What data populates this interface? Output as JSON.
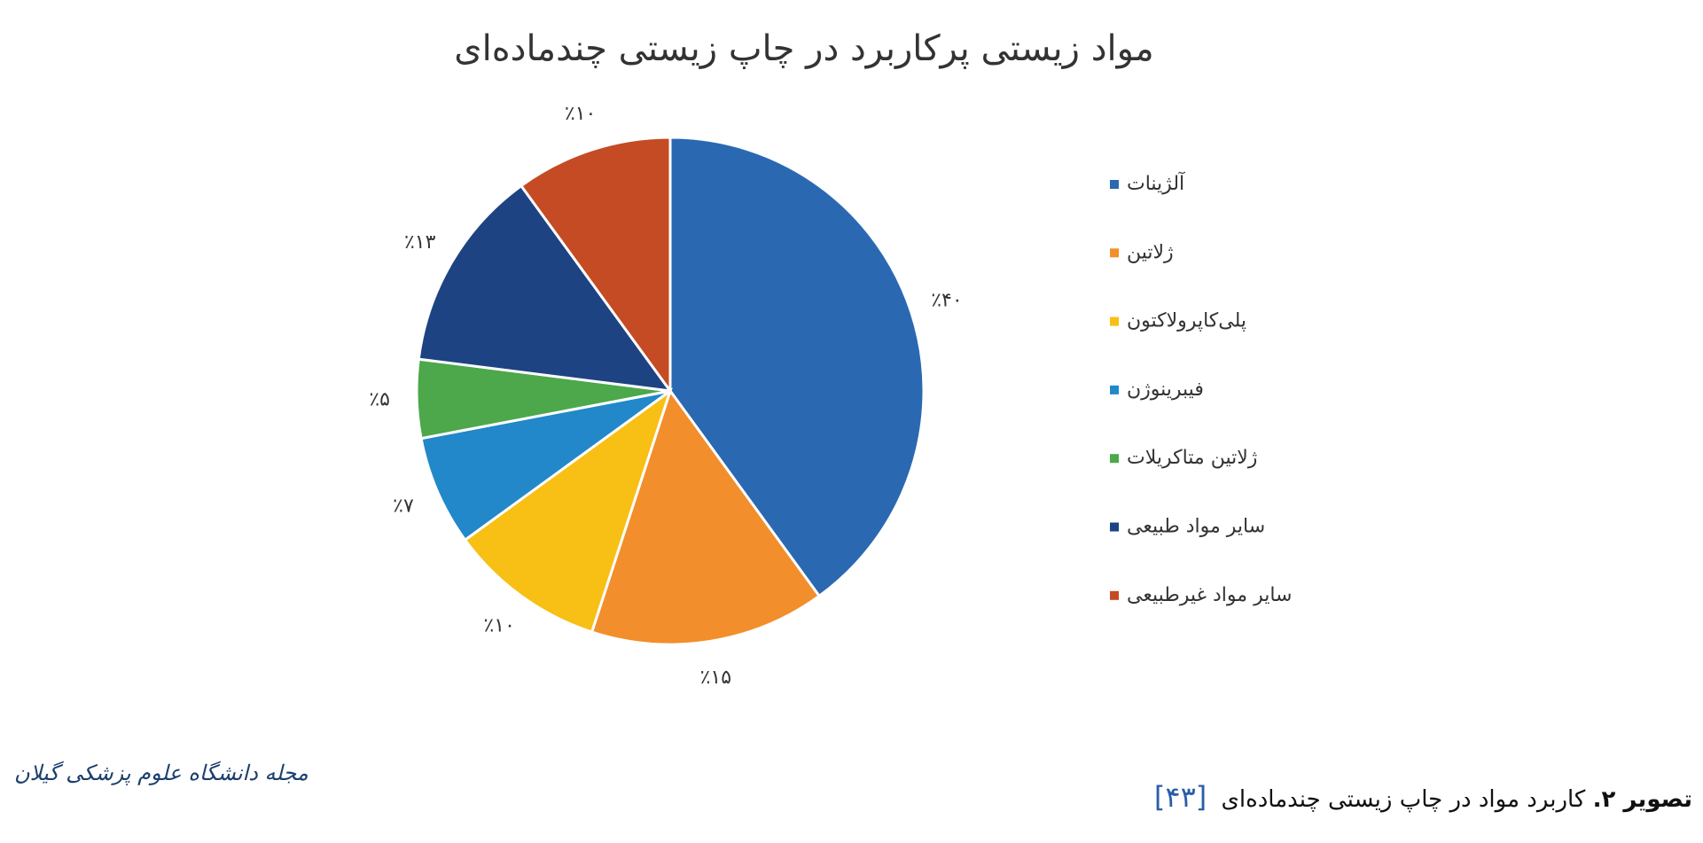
{
  "chart_data": {
    "type": "pie",
    "title": "مواد زیستی پرکاربرد در چاپ زیستی چندماده‌ای",
    "categories": [
      "آلژینات",
      "ژلاتین",
      "پلی‌کاپرولاکتون",
      "فیبرینوژن",
      "ژلاتین متاکریلات",
      "سایر مواد طبیعی",
      "سایر مواد غیرطبیعی"
    ],
    "values": [
      40,
      15,
      10,
      7,
      5,
      13,
      10
    ],
    "value_labels": [
      "٪۴۰",
      "٪۱۵",
      "٪۱۰",
      "٪۷",
      "٪۵",
      "٪۱۳",
      "٪۱۰"
    ],
    "colors": [
      "#2a69b2",
      "#f28e2b",
      "#f8bf14",
      "#2288c9",
      "#4ca84b",
      "#1e4382",
      "#c44b23"
    ],
    "legend": "right"
  },
  "footer": {
    "caption_label": "تصویر ۲.",
    "caption_text": "کاربرد مواد در چاپ زیستی چندماده‌ای",
    "reference": "[۴۳]",
    "journal": "مجله دانشگاه علوم پزشکی گیلان"
  }
}
